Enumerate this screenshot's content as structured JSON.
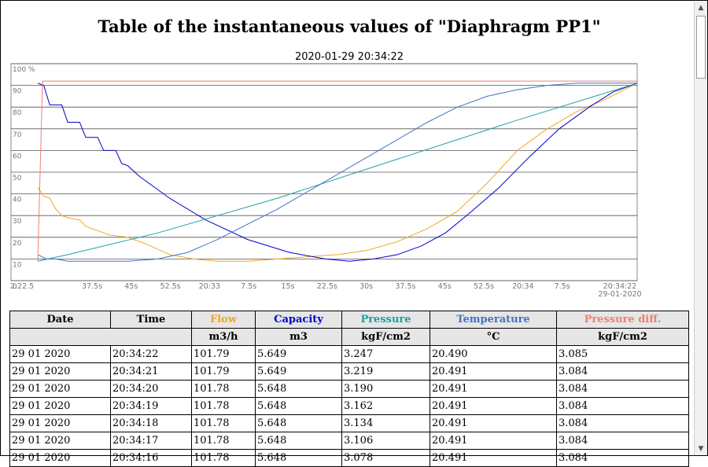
{
  "page": {
    "title": "Table of the instantaneous values of \"Diaphragm PP1\"",
    "timestamp": "2020-01-29 20:34:22"
  },
  "chart_data": {
    "type": "line",
    "y_ticks": [
      "100 %",
      "90",
      "80",
      "70",
      "60",
      "50",
      "40",
      "30",
      "20",
      "10",
      "0"
    ],
    "ylim": [
      0,
      100
    ],
    "x_ticks": [
      "2:22.5",
      "37.5s",
      "45s",
      "52.5s",
      "20:33",
      "7.5s",
      "15s",
      "22.5s",
      "30s",
      "37.5s",
      "45s",
      "52.5s",
      "20:34",
      "7.5s",
      "20:34:22"
    ],
    "x_date_label": "29-01-2020",
    "grid": true,
    "series": [
      {
        "name": "Flow",
        "color": "#f5a623",
        "points": [
          [
            0,
            43
          ],
          [
            0.01,
            39
          ],
          [
            0.02,
            38
          ],
          [
            0.03,
            33
          ],
          [
            0.04,
            30
          ],
          [
            0.05,
            29
          ],
          [
            0.07,
            28
          ],
          [
            0.08,
            25
          ],
          [
            0.12,
            21
          ],
          [
            0.15,
            20
          ],
          [
            0.18,
            17
          ],
          [
            0.22,
            12
          ],
          [
            0.26,
            10
          ],
          [
            0.3,
            9
          ],
          [
            0.35,
            9
          ],
          [
            0.4,
            10
          ],
          [
            0.45,
            11
          ],
          [
            0.5,
            12
          ],
          [
            0.55,
            14
          ],
          [
            0.6,
            18
          ],
          [
            0.65,
            24
          ],
          [
            0.7,
            32
          ],
          [
            0.75,
            45
          ],
          [
            0.8,
            60
          ],
          [
            0.85,
            70
          ],
          [
            0.9,
            78
          ],
          [
            0.95,
            84
          ],
          [
            1,
            91
          ]
        ]
      },
      {
        "name": "Capacity",
        "color": "#0000cc",
        "points": [
          [
            0,
            91
          ],
          [
            0.01,
            90
          ],
          [
            0.02,
            81
          ],
          [
            0.04,
            81
          ],
          [
            0.05,
            73
          ],
          [
            0.07,
            73
          ],
          [
            0.08,
            66
          ],
          [
            0.1,
            66
          ],
          [
            0.11,
            60
          ],
          [
            0.13,
            60
          ],
          [
            0.14,
            54
          ],
          [
            0.15,
            53
          ],
          [
            0.17,
            48
          ],
          [
            0.22,
            38
          ],
          [
            0.28,
            28
          ],
          [
            0.35,
            19
          ],
          [
            0.42,
            13
          ],
          [
            0.48,
            10
          ],
          [
            0.52,
            9
          ],
          [
            0.56,
            10
          ],
          [
            0.6,
            12
          ],
          [
            0.64,
            16
          ],
          [
            0.68,
            22
          ],
          [
            0.72,
            31
          ],
          [
            0.77,
            43
          ],
          [
            0.82,
            57
          ],
          [
            0.87,
            70
          ],
          [
            0.92,
            80
          ],
          [
            0.96,
            87
          ],
          [
            1,
            91
          ]
        ]
      },
      {
        "name": "Pressure",
        "color": "#20a0a0",
        "points": [
          [
            0,
            9
          ],
          [
            0.05,
            12
          ],
          [
            0.2,
            22
          ],
          [
            0.4,
            38
          ],
          [
            0.6,
            56
          ],
          [
            0.8,
            74
          ],
          [
            1,
            91
          ]
        ]
      },
      {
        "name": "Temperature",
        "color": "#4472c4",
        "points": [
          [
            0,
            12
          ],
          [
            0.015,
            10
          ],
          [
            0.03,
            10
          ],
          [
            0.05,
            9
          ],
          [
            0.1,
            9
          ],
          [
            0.15,
            9
          ],
          [
            0.2,
            10
          ],
          [
            0.25,
            13
          ],
          [
            0.3,
            19
          ],
          [
            0.35,
            26
          ],
          [
            0.4,
            33
          ],
          [
            0.45,
            41
          ],
          [
            0.5,
            49
          ],
          [
            0.55,
            57
          ],
          [
            0.6,
            65
          ],
          [
            0.65,
            73
          ],
          [
            0.7,
            80
          ],
          [
            0.75,
            85
          ],
          [
            0.8,
            88
          ],
          [
            0.85,
            90
          ],
          [
            0.9,
            91
          ],
          [
            0.95,
            91
          ],
          [
            1,
            91
          ]
        ]
      },
      {
        "name": "Pressure diff.",
        "color": "#f08070",
        "points": [
          [
            0,
            9
          ],
          [
            0.008,
            92
          ],
          [
            0.03,
            92
          ],
          [
            1,
            92
          ]
        ]
      }
    ]
  },
  "table": {
    "headers": [
      {
        "label": "Date",
        "color": "#000000"
      },
      {
        "label": "Time",
        "color": "#000000"
      },
      {
        "label": "Flow",
        "color": "#f5a623"
      },
      {
        "label": "Capacity",
        "color": "#0000cc"
      },
      {
        "label": "Pressure",
        "color": "#20a0a0"
      },
      {
        "label": "Temperature",
        "color": "#4472c4"
      },
      {
        "label": "Pressure diff.",
        "color": "#f08070"
      }
    ],
    "units": [
      "m3/h",
      "m3",
      "kgF/cm2",
      "°C",
      "kgF/cm2"
    ],
    "rows": [
      [
        "29 01 2020",
        "20:34:22",
        "101.79",
        "5.649",
        "3.247",
        "20.490",
        "3.085"
      ],
      [
        "29 01 2020",
        "20:34:21",
        "101.79",
        "5.649",
        "3.219",
        "20.491",
        "3.084"
      ],
      [
        "29 01 2020",
        "20:34:20",
        "101.78",
        "5.648",
        "3.190",
        "20.491",
        "3.084"
      ],
      [
        "29 01 2020",
        "20:34:19",
        "101.78",
        "5.648",
        "3.162",
        "20.491",
        "3.084"
      ],
      [
        "29 01 2020",
        "20:34:18",
        "101.78",
        "5.648",
        "3.134",
        "20.491",
        "3.084"
      ],
      [
        "29 01 2020",
        "20:34:17",
        "101.78",
        "5.648",
        "3.106",
        "20.491",
        "3.084"
      ],
      [
        "29 01 2020",
        "20:34:16",
        "101.78",
        "5.648",
        "3.078",
        "20.491",
        "3.084"
      ]
    ]
  },
  "scrollbar": {
    "up_icon": "triangle-up-icon",
    "down_icon": "triangle-down-icon"
  }
}
